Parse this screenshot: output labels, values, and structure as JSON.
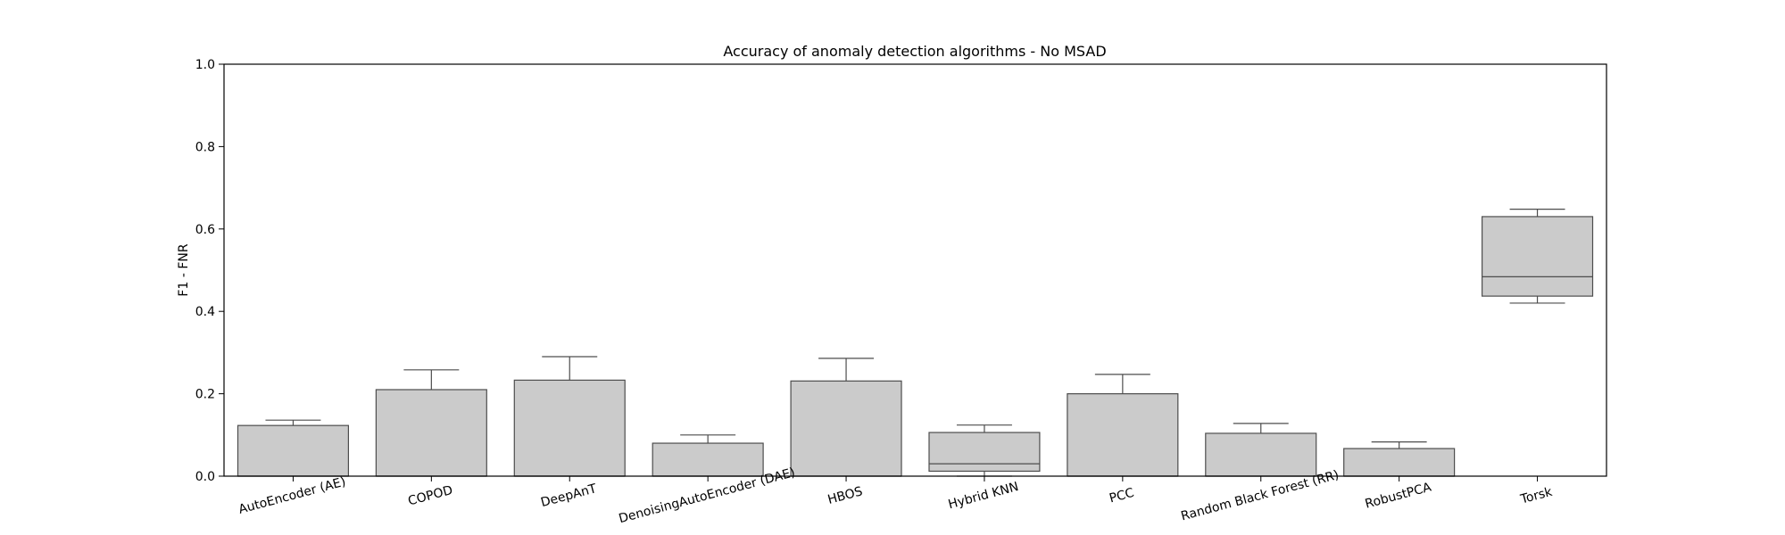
{
  "chart_data": {
    "type": "box",
    "title": "Accuracy of anomaly detection algorithms - No MSAD",
    "xlabel": "",
    "ylabel": "F1 - FNR",
    "ylim": [
      0,
      1
    ],
    "yticks": [
      "0.0",
      "0.2",
      "0.4",
      "0.6",
      "0.8",
      "1.0"
    ],
    "grid": false,
    "categories": [
      "AutoEncoder (AE)",
      "COPOD",
      "DeepAnT",
      "DenoisingAutoEncoder (DAE)",
      "HBOS",
      "Hybrid KNN",
      "PCC",
      "Random Black Forest (RR)",
      "RobustPCA",
      "Torsk"
    ],
    "boxes": [
      {
        "whisker_low": 0.0,
        "q1": 0.0,
        "median": 0.0,
        "q3": 0.123,
        "whisker_high": 0.136
      },
      {
        "whisker_low": 0.0,
        "q1": 0.0,
        "median": 0.0,
        "q3": 0.21,
        "whisker_high": 0.258
      },
      {
        "whisker_low": 0.0,
        "q1": 0.0,
        "median": 0.0,
        "q3": 0.233,
        "whisker_high": 0.29
      },
      {
        "whisker_low": 0.0,
        "q1": 0.0,
        "median": 0.0,
        "q3": 0.08,
        "whisker_high": 0.1
      },
      {
        "whisker_low": 0.0,
        "q1": 0.0,
        "median": 0.0,
        "q3": 0.231,
        "whisker_high": 0.286
      },
      {
        "whisker_low": 0.0,
        "q1": 0.012,
        "median": 0.03,
        "q3": 0.106,
        "whisker_high": 0.124
      },
      {
        "whisker_low": 0.0,
        "q1": 0.0,
        "median": 0.0,
        "q3": 0.2,
        "whisker_high": 0.247
      },
      {
        "whisker_low": 0.0,
        "q1": 0.0,
        "median": 0.0,
        "q3": 0.104,
        "whisker_high": 0.128
      },
      {
        "whisker_low": 0.0,
        "q1": 0.0,
        "median": 0.0,
        "q3": 0.067,
        "whisker_high": 0.083
      },
      {
        "whisker_low": 0.42,
        "q1": 0.437,
        "median": 0.484,
        "q3": 0.63,
        "whisker_high": 0.648
      }
    ],
    "colors": {
      "box_fill": "#cbcbcb",
      "box_edge": "#4d4d4d",
      "axis": "#000000"
    }
  }
}
